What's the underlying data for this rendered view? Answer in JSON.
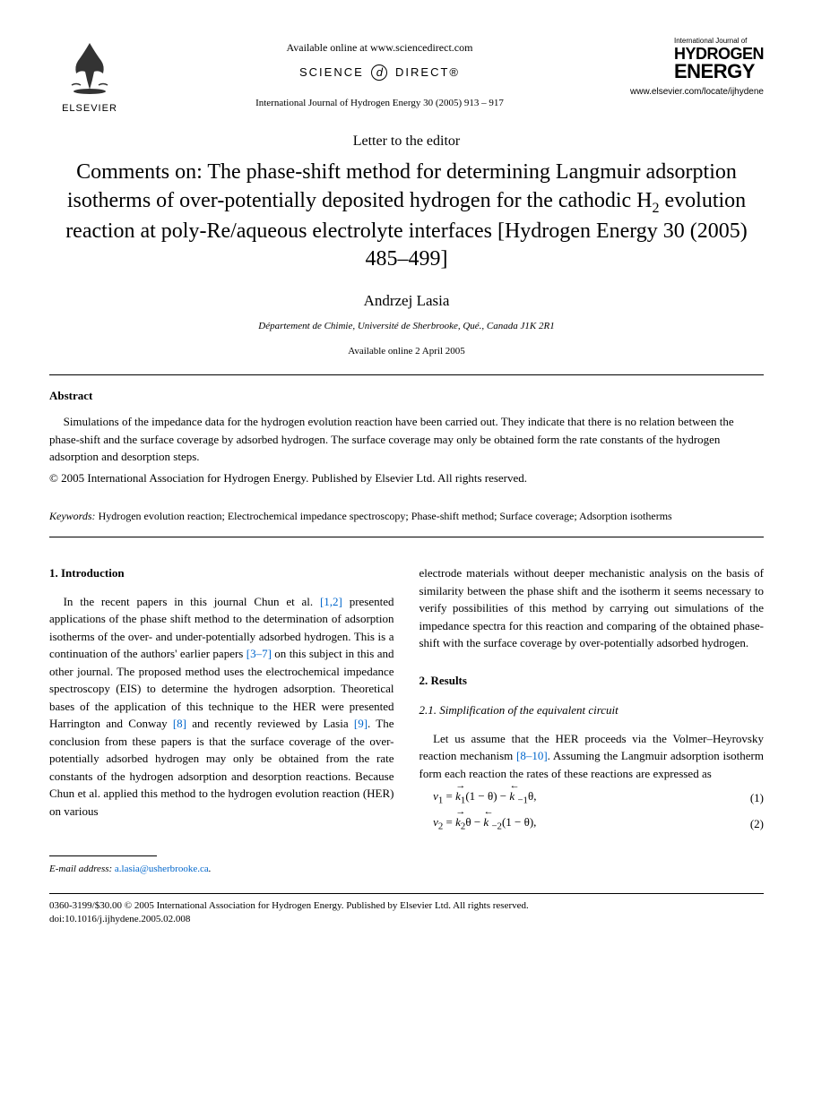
{
  "header": {
    "elsevier": "ELSEVIER",
    "available_online": "Available online at www.sciencedirect.com",
    "science_direct_1": "SCIENCE",
    "science_direct_2": "DIRECT®",
    "citation": "International Journal of Hydrogen Energy 30 (2005) 913 – 917",
    "journal_small": "International Journal of",
    "journal_line1": "HYDROGEN",
    "journal_line2": "ENERGY",
    "journal_url": "www.elsevier.com/locate/ijhydene"
  },
  "article": {
    "type": "Letter to the editor",
    "title_html": "Comments on: The phase-shift method for determining Langmuir adsorption isotherms of over-potentially deposited hydrogen for the cathodic H<sub>2</sub> evolution reaction at poly-Re/aqueous electrolyte interfaces [Hydrogen Energy 30 (2005) 485–499]",
    "author": "Andrzej Lasia",
    "affiliation": "Département de Chimie, Université de Sherbrooke, Qué., Canada J1K 2R1",
    "available_date": "Available online 2 April 2005"
  },
  "abstract": {
    "heading": "Abstract",
    "text": "Simulations of the impedance data for the hydrogen evolution reaction have been carried out. They indicate that there is no relation between the phase-shift and the surface coverage by adsorbed hydrogen. The surface coverage may only be obtained form the rate constants of the hydrogen adsorption and desorption steps.",
    "copyright": "© 2005 International Association for Hydrogen Energy. Published by Elsevier Ltd. All rights reserved."
  },
  "keywords": {
    "label": "Keywords:",
    "text": " Hydrogen evolution reaction; Electrochemical impedance spectroscopy; Phase-shift method; Surface coverage; Adsorption isotherms"
  },
  "sections": {
    "intro_heading": "1. Introduction",
    "intro_text_html": "In the recent papers in this journal Chun et al. <span class=\"ref-link\">[1,2]</span> presented applications of the phase shift method to the determination of adsorption isotherms of the over- and under-potentially adsorbed hydrogen. This is a continuation of the authors' earlier papers <span class=\"ref-link\">[3–7]</span> on this subject in this and other journal. The proposed method uses the electrochemical impedance spectroscopy (EIS) to determine the hydrogen adsorption. Theoretical bases of the application of this technique to the HER were presented Harrington and Conway <span class=\"ref-link\">[8]</span> and recently reviewed by Lasia <span class=\"ref-link\">[9]</span>. The conclusion from these papers is that the surface coverage of the over-potentially adsorbed hydrogen may only be obtained from the rate constants of the hydrogen adsorption and desorption reactions. Because Chun et al. applied this method to the hydrogen evolution reaction (HER) on various",
    "col2_continuation": "electrode materials without deeper mechanistic analysis on the basis of similarity between the phase shift and the isotherm it seems necessary to verify possibilities of this method by carrying out simulations of the impedance spectra for this reaction and comparing of the obtained phase-shift with the surface coverage by over-potentially adsorbed hydrogen.",
    "results_heading": "2. Results",
    "sub_heading": "2.1. Simplification of the equivalent circuit",
    "results_text_html": "Let us assume that the HER proceeds via the Volmer–Heyrovsky reaction mechanism <span class=\"ref-link\">[8–10]</span>. Assuming the Langmuir adsorption isotherm form each reaction the rates of these reactions are expressed as"
  },
  "equations": {
    "eq1": {
      "num": "(1)"
    },
    "eq2": {
      "num": "(2)"
    }
  },
  "footnote": {
    "label": "E-mail address:",
    "email": "a.lasia@usherbrooke.ca",
    "suffix": "."
  },
  "footer": {
    "line1": "0360-3199/$30.00 © 2005 International Association for Hydrogen Energy. Published by Elsevier Ltd. All rights reserved.",
    "line2": "doi:10.1016/j.ijhydene.2005.02.008"
  },
  "colors": {
    "link": "#0066cc",
    "text": "#000000",
    "bg": "#ffffff"
  }
}
